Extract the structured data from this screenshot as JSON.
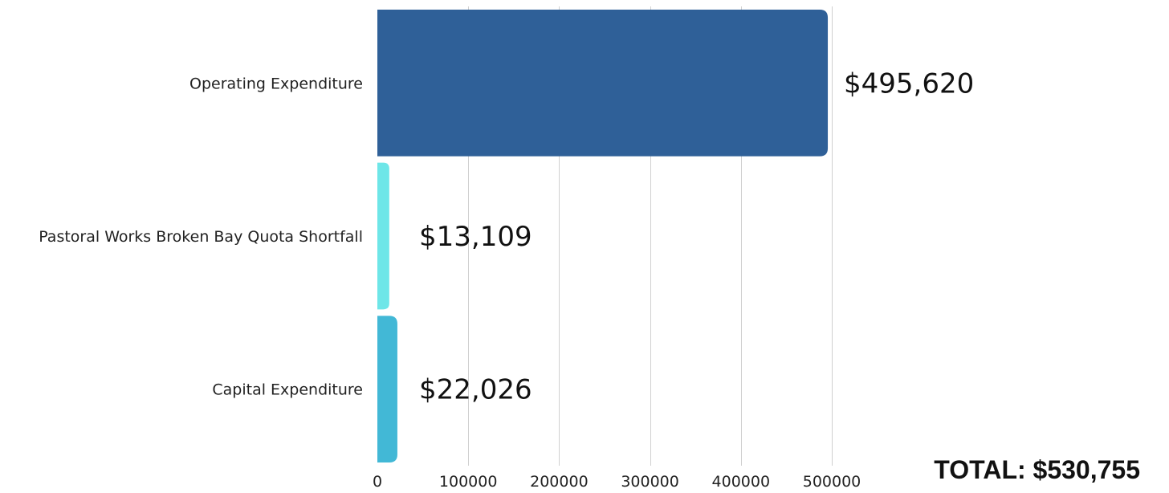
{
  "chart_data": {
    "type": "bar",
    "orientation": "horizontal",
    "categories": [
      "Operating Expenditure",
      "Pastoral Works Broken Bay Quota Shortfall",
      "Capital Expenditure"
    ],
    "values": [
      495620,
      13109,
      22026
    ],
    "data_labels": [
      "$495,620",
      "$13,109",
      "$22,026"
    ],
    "colors": [
      "#2f6098",
      "#6ee6e8",
      "#42b8d6"
    ],
    "xlim": [
      0,
      500000
    ],
    "x_ticks": [
      0,
      100000,
      200000,
      300000,
      400000,
      500000
    ],
    "x_tick_labels": [
      "0",
      "100000",
      "200000",
      "300000",
      "400000",
      "500000"
    ],
    "grid": true,
    "title": "",
    "xlabel": "",
    "ylabel": "",
    "total_label": "TOTAL: $530,755"
  }
}
